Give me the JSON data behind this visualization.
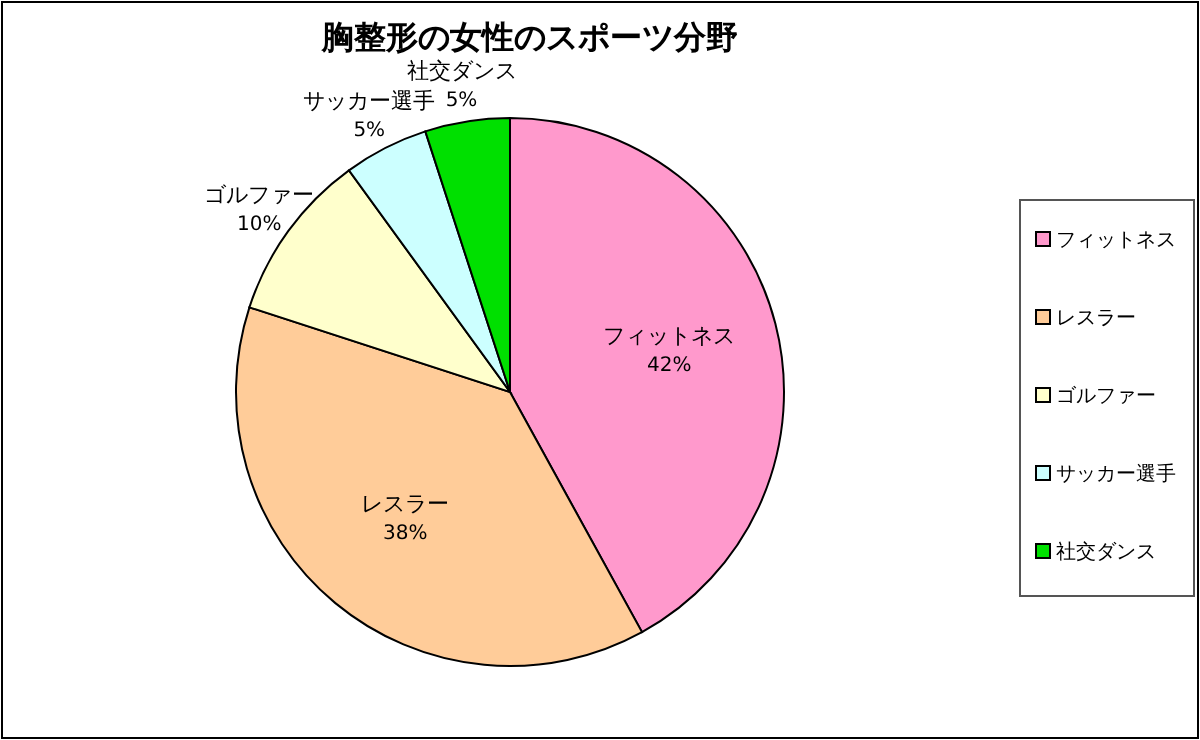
{
  "chart_data": {
    "type": "pie",
    "title": "胸整形の女性のスポーツ分野",
    "categories": [
      "フィットネス",
      "レスラー",
      "ゴルファー",
      "サッカー選手",
      "社交ダンス"
    ],
    "values": [
      42,
      38,
      10,
      5,
      5
    ],
    "value_labels": [
      "42%",
      "38%",
      "10%",
      "5%",
      "5%"
    ],
    "colors": [
      "#ff99cc",
      "#ffcc99",
      "#ffffcc",
      "#ccffff",
      "#00e000"
    ],
    "legend": "right"
  }
}
